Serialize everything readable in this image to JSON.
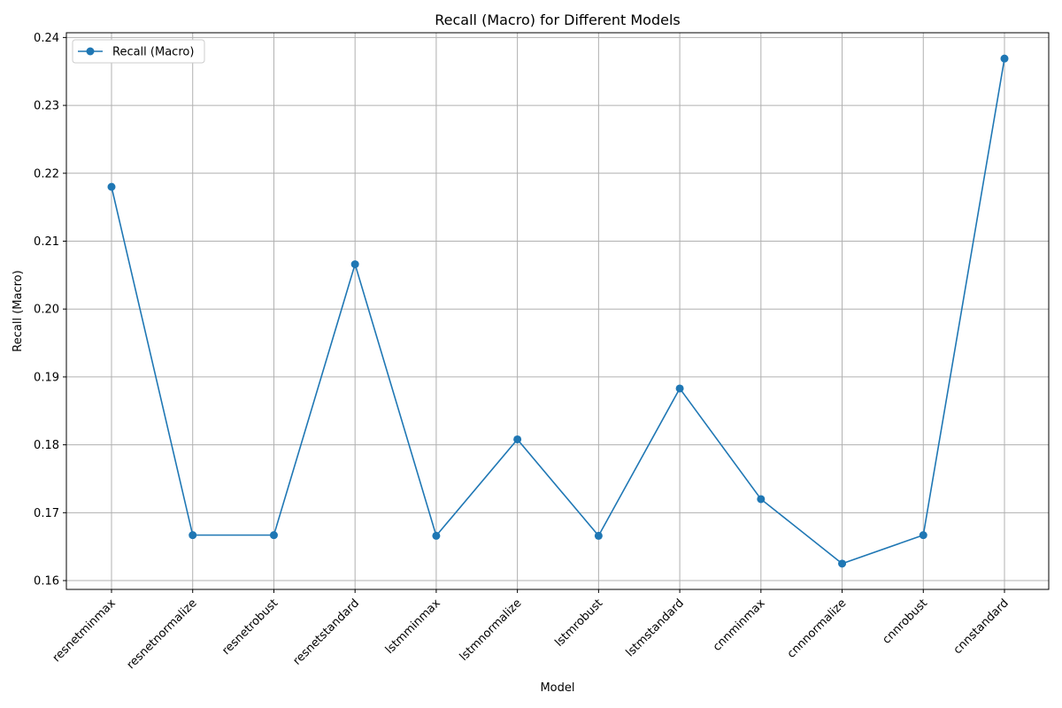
{
  "chart_data": {
    "type": "line",
    "title": "Recall (Macro) for Different Models",
    "xlabel": "Model",
    "ylabel": "Recall (Macro)",
    "categories": [
      "resnetminmax",
      "resnetnormalize",
      "resnetrobust",
      "resnetstandard",
      "lstmminmax",
      "lstmnormalize",
      "lstmrobust",
      "lstmstandard",
      "cnnminmax",
      "cnnnormalize",
      "cnnrobust",
      "cnnstandard"
    ],
    "series": [
      {
        "name": "Recall (Macro)",
        "color": "#1f77b4",
        "values": [
          0.218,
          0.1667,
          0.1667,
          0.2066,
          0.1666,
          0.1808,
          0.1666,
          0.1883,
          0.172,
          0.1625,
          0.1667,
          0.2369
        ]
      }
    ],
    "yticks": [
      0.16,
      0.17,
      0.18,
      0.19,
      0.2,
      0.21,
      0.22,
      0.23,
      0.24
    ],
    "ytick_labels": [
      "0.16",
      "0.17",
      "0.18",
      "0.19",
      "0.20",
      "0.21",
      "0.22",
      "0.23",
      "0.24"
    ],
    "ylim": [
      0.1587,
      0.2407
    ],
    "grid": true,
    "legend_position": "top-left",
    "marker": "circle"
  }
}
